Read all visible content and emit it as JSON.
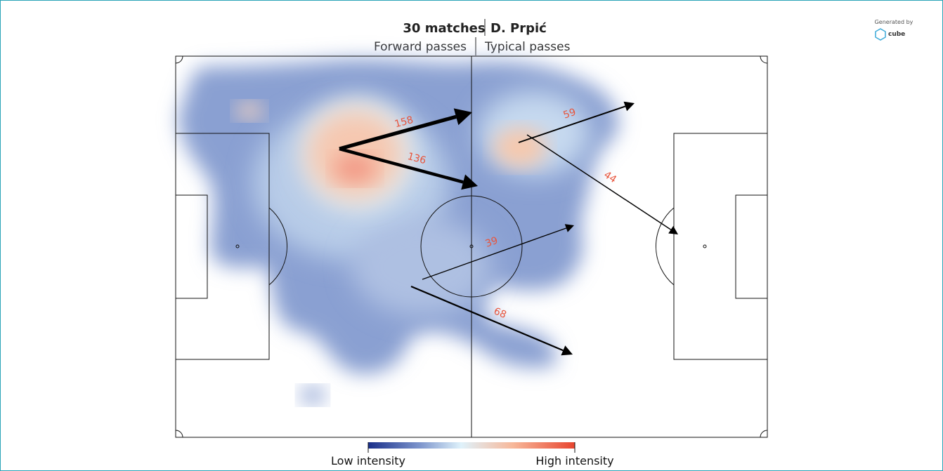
{
  "header": {
    "matches": "30 matches",
    "player": "D. Prpić",
    "left": "Forward passes",
    "right": "Typical passes"
  },
  "credit": {
    "line1": "Generated by",
    "brand": "cube"
  },
  "passes": [
    {
      "count": 158
    },
    {
      "count": 136
    },
    {
      "count": 59
    },
    {
      "count": 44
    },
    {
      "count": 39
    },
    {
      "count": 68
    }
  ],
  "legend": {
    "low": "Low intensity",
    "high": "High intensity"
  }
}
